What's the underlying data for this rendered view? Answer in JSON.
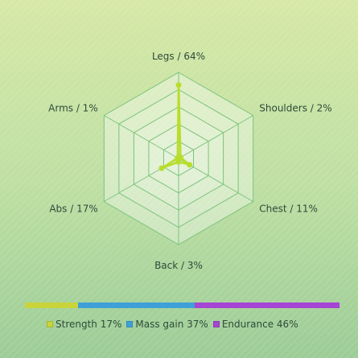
{
  "chart_data": {
    "type": "radar",
    "axes": [
      {
        "name": "Legs",
        "value": 64,
        "label": "Legs / 64%"
      },
      {
        "name": "Shoulders",
        "value": 2,
        "label": "Shoulders / 2%"
      },
      {
        "name": "Chest",
        "value": 11,
        "label": "Chest / 11%"
      },
      {
        "name": "Back",
        "value": 3,
        "label": "Back / 3%"
      },
      {
        "name": "Abs",
        "value": 17,
        "label": "Abs / 17%"
      },
      {
        "name": "Arms",
        "value": 1,
        "label": "Arms / 1%"
      }
    ],
    "range": [
      0,
      75
    ],
    "grid_levels": 5,
    "series_color": "#b9dd2b",
    "grid_color": "#7cc47c",
    "legend": [
      {
        "label": "Strength 17%",
        "value": 17,
        "color": "#c8d43a"
      },
      {
        "label": "Mass gain 37%",
        "value": 37,
        "color": "#3fa0d8"
      },
      {
        "label": "Endurance 46%",
        "value": 46,
        "color": "#a644d4"
      }
    ]
  }
}
